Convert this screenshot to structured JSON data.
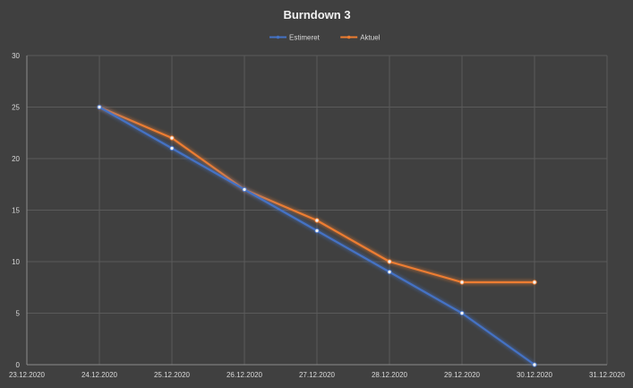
{
  "chart_data": {
    "type": "line",
    "title": "Burndown 3",
    "x": [
      "23.12.2020",
      "24.12.2020",
      "25.12.2020",
      "26.12.2020",
      "27.12.2020",
      "28.12.2020",
      "29.12.2020",
      "30.12.2020",
      "31.12.2020"
    ],
    "ylim": [
      0,
      30
    ],
    "yticks": [
      0,
      5,
      10,
      15,
      20,
      25,
      30
    ],
    "grid": true,
    "legend_position": "top",
    "series": [
      {
        "name": "Estimeret",
        "color": "#4472c4",
        "values": [
          null,
          25,
          21,
          17,
          13,
          9,
          5,
          0,
          null
        ]
      },
      {
        "name": "Aktuel",
        "color": "#ed7d31",
        "values": [
          null,
          25,
          22,
          17,
          14,
          10,
          8,
          8,
          null
        ]
      }
    ]
  }
}
